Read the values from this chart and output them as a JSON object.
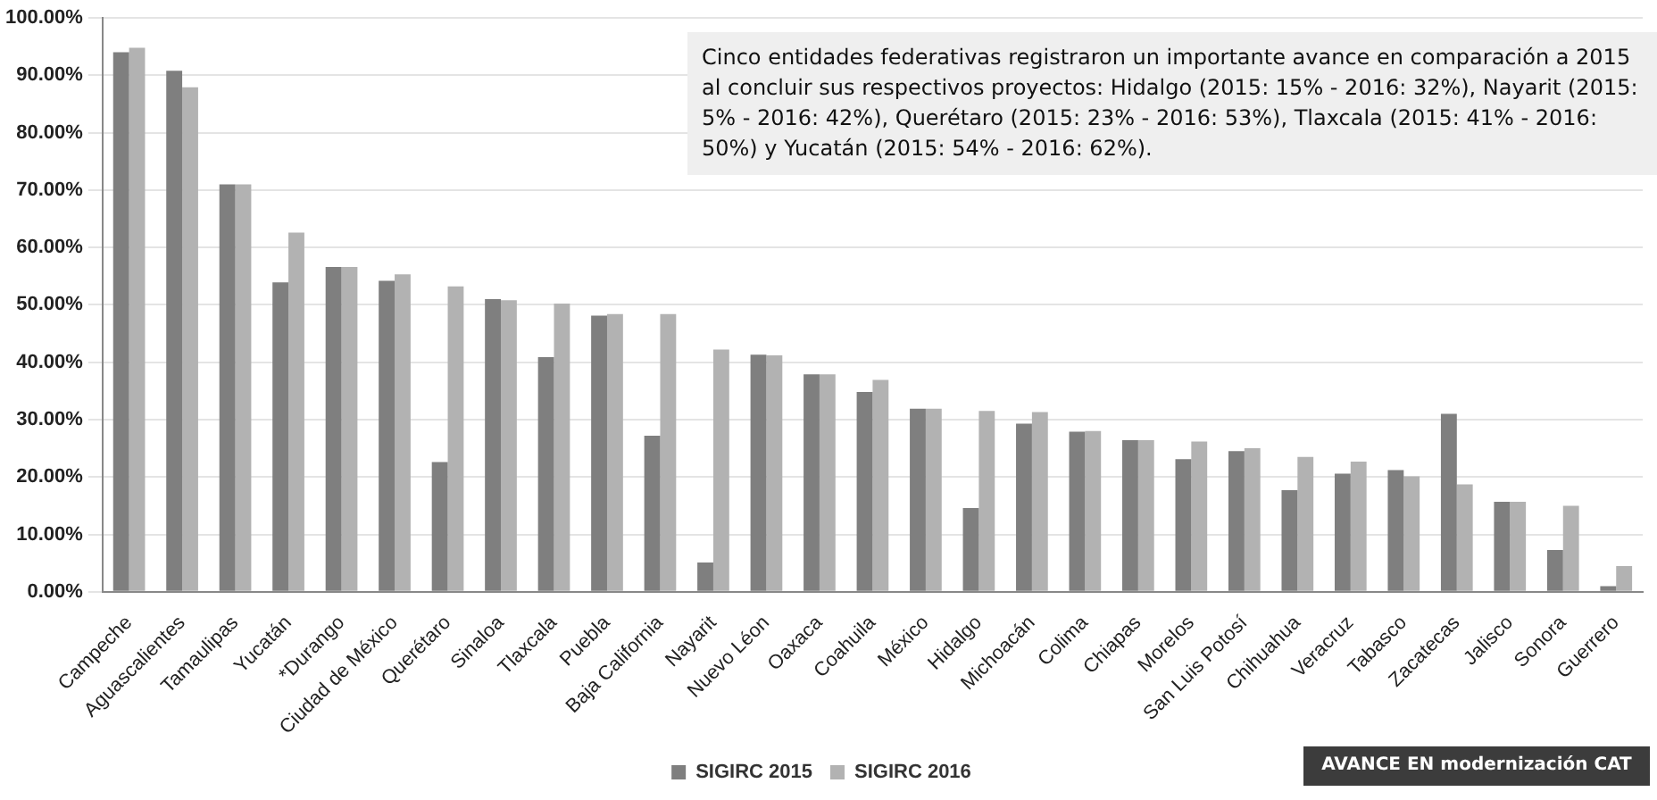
{
  "chart_data": {
    "type": "bar",
    "categories": [
      "Campeche",
      "Aguascalientes",
      "Tamaulipas",
      "Yucatán",
      "*Durango",
      "Ciudad de México",
      "Querétaro",
      "Sinaloa",
      "Tlaxcala",
      "Puebla",
      "Baja California",
      "Nayarit",
      "Nuevo Léon",
      "Oaxaca",
      "Coahuila",
      "México",
      "Hidalgo",
      "Michoacán",
      "Colima",
      "Chiapas",
      "Morelos",
      "San Luis Potosí",
      "Chihuahua",
      "Veracruz",
      "Tabasco",
      "Zacatecas",
      "Jalisco",
      "Sonora",
      "Guerrero"
    ],
    "series": [
      {
        "name": "SIGIRC 2015",
        "color": "#7f7f7f",
        "values": [
          94.0,
          90.8,
          71.0,
          53.9,
          56.6,
          54.2,
          22.6,
          51.0,
          40.9,
          48.1,
          27.2,
          5.1,
          41.3,
          37.9,
          34.8,
          31.9,
          14.6,
          29.3,
          27.9,
          26.4,
          23.1,
          24.5,
          17.7,
          20.6,
          21.2,
          31.0,
          15.7,
          7.3,
          1.0
        ]
      },
      {
        "name": "SIGIRC 2016",
        "color": "#b2b2b2",
        "values": [
          94.8,
          87.9,
          71.0,
          62.6,
          56.6,
          55.3,
          53.2,
          50.8,
          50.2,
          48.4,
          48.4,
          42.2,
          41.2,
          37.9,
          36.9,
          31.9,
          31.5,
          31.3,
          28.0,
          26.4,
          26.2,
          25.0,
          23.5,
          22.7,
          20.1,
          18.7,
          15.7,
          15.0,
          4.5
        ]
      }
    ],
    "ylim": [
      0,
      100
    ],
    "yticks": [
      {
        "value": 0,
        "label": "0.00%"
      },
      {
        "value": 10,
        "label": "10.00%"
      },
      {
        "value": 20,
        "label": "20.00%"
      },
      {
        "value": 30,
        "label": "30.00%"
      },
      {
        "value": 40,
        "label": "40.00%"
      },
      {
        "value": 50,
        "label": "50.00%"
      },
      {
        "value": 60,
        "label": "60.00%"
      },
      {
        "value": 70,
        "label": "70.00%"
      },
      {
        "value": 80,
        "label": "80.00%"
      },
      {
        "value": 90,
        "label": "90.00%"
      },
      {
        "value": 100,
        "label": "100.00%"
      }
    ],
    "grid": "y",
    "legend": "bottom",
    "annotations": [
      "Cinco entidades federativas registraron un importante avance en comparación a 2015 al concluir sus respectivos proyectos: Hidalgo (2015: 15% - 2016: 32%), Nayarit (2015: 5% - 2016: 42%), Querétaro (2015: 23% - 2016: 53%), Tlaxcala (2015: 41% - 2016: 50%) y Yucatán (2015: 54% - 2016: 62%).",
      "AVANCE EN modernización CAT"
    ]
  }
}
